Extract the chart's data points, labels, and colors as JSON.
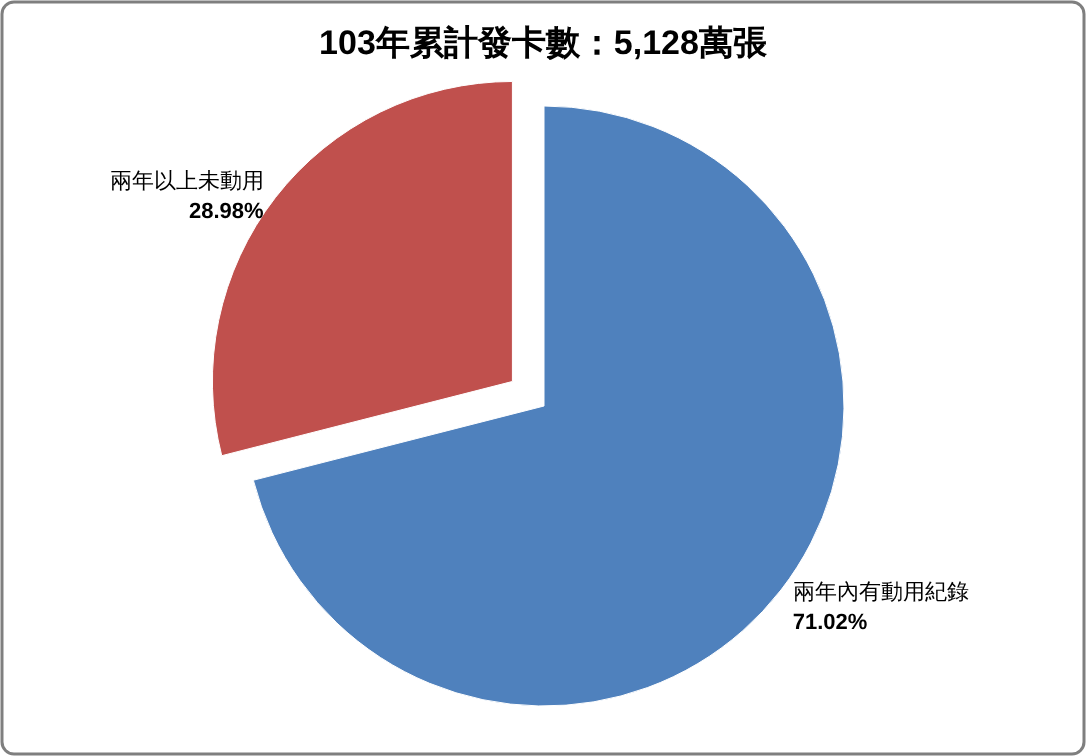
{
  "chart_data": {
    "type": "pie",
    "title": "103年累計發卡數：5,128萬張",
    "categories": [
      "兩年內有動用紀錄",
      "兩年以上未動用"
    ],
    "values": [
      71.02,
      28.98
    ],
    "colors": [
      "#4f81bd",
      "#c0504d"
    ],
    "value_labels": [
      "71.02%",
      "28.98%"
    ],
    "legend": false
  }
}
